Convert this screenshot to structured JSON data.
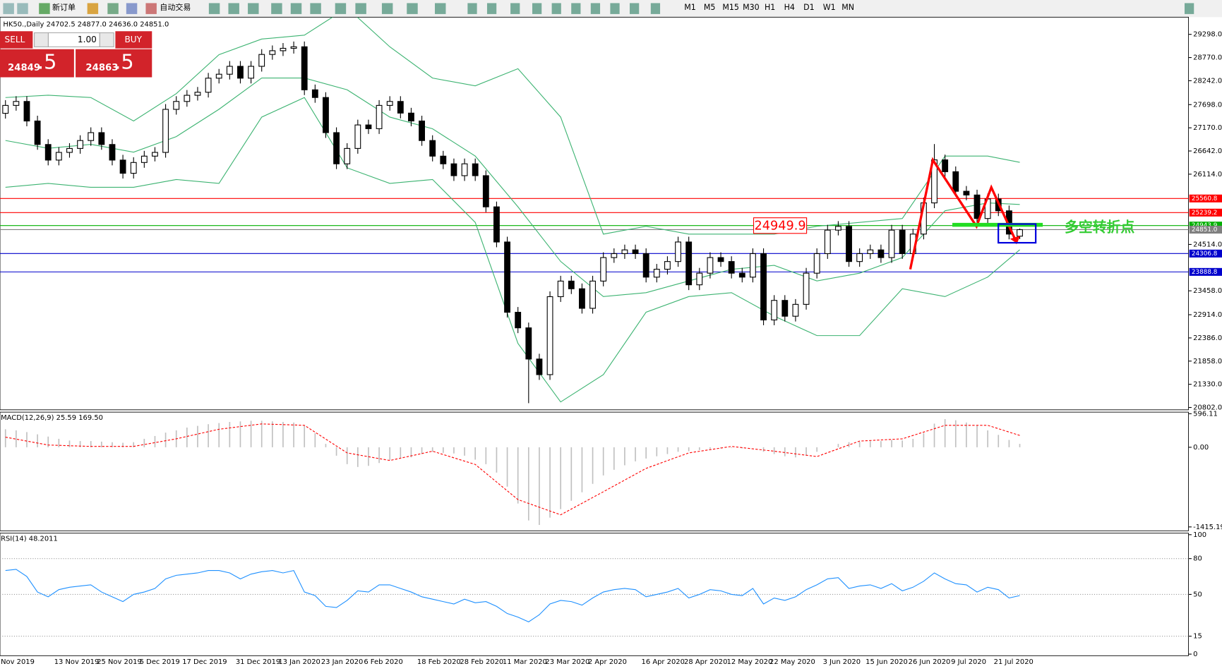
{
  "toolbar": {
    "buttons": [
      "新订单",
      "自动交易"
    ],
    "timeframes": [
      "M1",
      "M5",
      "M15",
      "M30",
      "H1",
      "H4",
      "D1",
      "W1",
      "MN"
    ]
  },
  "trade_panel": {
    "sell": "SELL",
    "buy": "BUY",
    "lots": "1.00",
    "sell_main": "24849",
    "sell_pips": ".5",
    "buy_main": "24863",
    "buy_pips": ".5"
  },
  "chart_data": [
    {
      "type": "candlestick",
      "title": "HK50.,Daily  24702.5 24877.0 24636.0 24851.0",
      "categories": [
        "Nov 2019",
        null,
        null,
        null,
        null,
        "13 Nov 2019",
        null,
        null,
        null,
        "25 Nov 2019",
        null,
        null,
        null,
        "5 Dec 2019",
        null,
        null,
        null,
        "17 Dec 2019",
        null,
        null,
        null,
        null,
        "31 Dec 2019",
        null,
        null,
        null,
        "13 Jan 2020",
        null,
        null,
        null,
        "23 Jan 2020",
        null,
        null,
        null,
        "6 Feb 2020",
        null,
        null,
        null,
        null,
        "18 Feb 2020",
        null,
        null,
        null,
        "28 Feb 2020",
        null,
        null,
        null,
        "11 Mar 2020",
        null,
        null,
        null,
        "23 Mar 2020",
        null,
        null,
        null,
        "2 Apr 2020",
        null,
        null,
        null,
        null,
        "16 Apr 2020",
        null,
        null,
        null,
        "28 Apr 2020",
        null,
        null,
        null,
        "12 May 2020",
        null,
        null,
        null,
        "22 May 2020",
        null,
        null,
        null,
        null,
        "3 Jun 2020",
        null,
        null,
        null,
        "15 Jun 2020",
        null,
        null,
        null,
        "26 Jun 2020",
        null,
        null,
        null,
        "9 Jul 2020",
        null,
        null,
        null,
        "21 Jul 2020",
        null,
        null
      ],
      "open": [
        27500,
        27680,
        27770,
        27325,
        26790,
        26435,
        26610,
        26700,
        26880,
        27060,
        26790,
        26435,
        26135,
        26380,
        26525,
        26610,
        27590,
        27770,
        27910,
        27980,
        28300,
        28390,
        28570,
        28300,
        28570,
        28840,
        28925,
        28980,
        29015,
        28035,
        27860,
        27060,
        26350,
        26700,
        27235,
        27150,
        27680,
        27770,
        27505,
        27325,
        26880,
        26525,
        26350,
        26080,
        26350,
        26080,
        25370,
        24570,
        22970,
        22615,
        21905,
        21550,
        23325,
        23680,
        23505,
        23060,
        23680,
        24215,
        24305,
        24390,
        24305,
        23770,
        23950,
        24125,
        24570,
        23595,
        23860,
        24215,
        24125,
        23860,
        23770,
        24305,
        22795,
        23240,
        22880,
        23150,
        23860,
        24305,
        24840,
        24925,
        24125,
        24305,
        24390,
        24215,
        24840,
        24305,
        24750,
        25460,
        26440,
        26170,
        25725,
        25640,
        25105,
        25550,
        25280,
        24702.5
      ],
      "high": [
        27800,
        27890,
        27890,
        27445,
        26910,
        26730,
        26820,
        27000,
        27180,
        27180,
        26910,
        26555,
        26500,
        26645,
        26730,
        27710,
        27890,
        28030,
        28100,
        28420,
        28510,
        28690,
        28690,
        28690,
        28960,
        29045,
        29100,
        29135,
        29135,
        28155,
        27980,
        27180,
        26820,
        27355,
        27355,
        27800,
        27890,
        27890,
        27625,
        27445,
        27000,
        26645,
        26470,
        26470,
        26470,
        26200,
        25490,
        24690,
        23090,
        22735,
        22025,
        23445,
        23800,
        23800,
        23625,
        23800,
        24335,
        24425,
        24510,
        24510,
        24425,
        24070,
        24245,
        24690,
        24690,
        23980,
        24335,
        24335,
        24245,
        23980,
        24425,
        24425,
        23360,
        23360,
        23270,
        23980,
        24425,
        24960,
        25045,
        25045,
        24425,
        24510,
        24510,
        24960,
        24960,
        24870,
        25580,
        26800,
        26560,
        26290,
        25845,
        25760,
        25670,
        25670,
        25400,
        24877
      ],
      "low": [
        27380,
        27560,
        27205,
        26670,
        26315,
        26315,
        26490,
        26580,
        26760,
        26670,
        26315,
        26015,
        26015,
        26260,
        26405,
        26490,
        27470,
        27650,
        27790,
        27860,
        28180,
        28270,
        28180,
        28180,
        28450,
        28720,
        28805,
        28860,
        27915,
        27740,
        26940,
        26230,
        26230,
        26580,
        27030,
        27030,
        27560,
        27385,
        27205,
        26760,
        26405,
        26230,
        25960,
        25960,
        25960,
        25250,
        24450,
        22850,
        22495,
        20900,
        21430,
        21430,
        23205,
        23385,
        22940,
        22940,
        23560,
        24095,
        24185,
        24185,
        23650,
        23650,
        23830,
        24005,
        23475,
        23475,
        23740,
        24005,
        23740,
        23650,
        23650,
        22675,
        22675,
        22760,
        22760,
        23030,
        23740,
        24185,
        24720,
        24005,
        24005,
        24185,
        24095,
        24095,
        24185,
        24185,
        24630,
        25340,
        26050,
        25605,
        25520,
        24985,
        24985,
        25160,
        24630,
        24636
      ],
      "close": [
        27680,
        27770,
        27325,
        26790,
        26435,
        26610,
        26700,
        26880,
        27060,
        26790,
        26435,
        26135,
        26380,
        26525,
        26610,
        27590,
        27770,
        27910,
        27980,
        28300,
        28390,
        28570,
        28300,
        28570,
        28840,
        28925,
        28980,
        29015,
        28035,
        27860,
        27060,
        26350,
        26700,
        27235,
        27150,
        27680,
        27770,
        27505,
        27325,
        26880,
        26525,
        26350,
        26080,
        26350,
        26080,
        25370,
        24570,
        22970,
        22615,
        21905,
        21550,
        23325,
        23680,
        23505,
        23060,
        23680,
        24215,
        24305,
        24390,
        24305,
        23770,
        23950,
        24125,
        24570,
        23595,
        23860,
        24215,
        24125,
        23860,
        23770,
        24305,
        22795,
        23240,
        22880,
        23150,
        23860,
        24305,
        24840,
        24925,
        24125,
        24305,
        24390,
        24215,
        24840,
        24305,
        24750,
        25460,
        26440,
        26170,
        25725,
        25640,
        25105,
        25550,
        25280,
        24750,
        24851
      ],
      "bands": {
        "color": "#3cb371",
        "x": [
          0,
          4,
          8,
          12,
          16,
          20,
          24,
          28,
          32,
          36,
          40,
          44,
          48,
          52,
          56,
          60,
          64,
          68,
          72,
          76,
          80,
          84,
          88,
          92,
          95
        ],
        "upper": [
          27859,
          27912,
          27859,
          27326,
          27948,
          28836,
          29191,
          29280,
          29902,
          29014,
          28303,
          28125,
          28516,
          27414,
          24749,
          24927,
          24749,
          24749,
          24749,
          24927,
          25016,
          25105,
          26526,
          26526,
          26384
        ],
        "middle": [
          26881,
          26704,
          26793,
          26615,
          26970,
          27592,
          28303,
          28303,
          28036,
          27414,
          27148,
          26526,
          25371,
          24127,
          23327,
          23416,
          23683,
          23949,
          24038,
          23683,
          23860,
          24216,
          25282,
          25460,
          25424
        ],
        "lower": [
          25815,
          25904,
          25815,
          25815,
          25993,
          25904,
          27414,
          27859,
          26259,
          25904,
          25993,
          25016,
          22261,
          20928,
          21550,
          22972,
          23327,
          23416,
          22883,
          22439,
          22439,
          23505,
          23327,
          23772,
          24394
        ]
      },
      "levels": [
        {
          "value": 25560.8,
          "color": "#ff0000"
        },
        {
          "value": 25239.2,
          "color": "#ff0000"
        },
        {
          "value": 24943.9,
          "color": "#00b000"
        },
        {
          "value": 24851,
          "label": "24851.0",
          "color": "#808080"
        },
        {
          "value": 24306.8,
          "color": "#0000cc"
        },
        {
          "value": 23888.8,
          "color": "#0000cc"
        }
      ],
      "annotations": [
        "24949.9",
        "多空转折点"
      ],
      "ylim": [
        20749,
        29689
      ],
      "yticks": [
        {
          "value": 29298,
          "label": "29298.0"
        },
        {
          "value": 28770,
          "label": "28770.0"
        },
        {
          "value": 28242,
          "label": "28242.0"
        },
        {
          "value": 27698,
          "label": "27698.0"
        },
        {
          "value": 27170,
          "label": "27170.0"
        },
        {
          "value": 26642,
          "label": "26642.0"
        },
        {
          "value": 26114,
          "label": "26114.0"
        },
        {
          "value": 24514,
          "label": "24514.0"
        },
        {
          "value": 23458,
          "label": "23458.0"
        },
        {
          "value": 22914,
          "label": "22914.0"
        },
        {
          "value": 22386,
          "label": "22386.0"
        },
        {
          "value": 21858,
          "label": "21858.0"
        },
        {
          "value": 21330,
          "label": "21330.0"
        },
        {
          "value": 20802,
          "label": "20802.0"
        }
      ]
    },
    {
      "type": "macd",
      "title": "MACD(12,26,9) 25.59 169.50",
      "color": "#c0c0c0",
      "values": [
        320,
        300,
        270,
        230,
        190,
        150,
        120,
        110,
        110,
        100,
        90,
        80,
        90,
        150,
        200,
        260,
        300,
        350,
        380,
        410,
        430,
        450,
        460,
        470,
        470,
        460,
        450,
        440,
        380,
        250,
        60,
        -150,
        -300,
        -350,
        -330,
        -280,
        -230,
        -200,
        -180,
        -120,
        -80,
        -100,
        -110,
        -150,
        -220,
        -300,
        -450,
        -700,
        -1000,
        -1300,
        -1380,
        -1250,
        -1100,
        -950,
        -800,
        -650,
        -500,
        -400,
        -320,
        -250,
        -200,
        -160,
        -120,
        -80,
        -70,
        -50,
        -30,
        -20,
        -10,
        -20,
        0,
        -80,
        -120,
        -160,
        -180,
        -150,
        -80,
        0,
        60,
        90,
        100,
        110,
        110,
        130,
        120,
        150,
        250,
        420,
        500,
        480,
        440,
        380,
        300,
        220,
        130,
        60
      ],
      "signal": {
        "color": "#ff0000",
        "x": [
          0,
          4,
          8,
          12,
          16,
          20,
          24,
          28,
          32,
          36,
          40,
          44,
          48,
          52,
          56,
          60,
          64,
          68,
          72,
          76,
          80,
          84,
          88,
          92,
          95
        ],
        "values": [
          180,
          40,
          15,
          15,
          150,
          320,
          415,
          390,
          -100,
          -235,
          -70,
          -305,
          -930,
          -1200,
          -790,
          -375,
          -100,
          15,
          -70,
          -165,
          110,
          150,
          390,
          390,
          210
        ]
      },
      "ylim": [
        -1484,
        624
      ],
      "yticks": [
        596.11,
        {
          "value": 0,
          "label": "0.00"
        },
        -1415.19
      ]
    },
    {
      "type": "line",
      "title": "RSI(14) 48.2011",
      "color": "#1e90ff",
      "values": [
        70,
        71,
        65,
        52,
        48,
        54,
        56,
        57,
        58,
        52,
        48,
        44,
        50,
        52,
        55,
        63,
        66,
        67,
        68,
        70,
        70,
        68,
        63,
        67,
        69,
        70,
        68,
        70,
        52,
        49,
        40,
        39,
        45,
        53,
        52,
        58,
        58,
        55,
        52,
        48,
        46,
        44,
        42,
        46,
        43,
        44,
        40,
        34,
        31,
        27,
        33,
        42,
        45,
        44,
        41,
        47,
        52,
        54,
        55,
        54,
        48,
        50,
        52,
        55,
        47,
        50,
        54,
        53,
        50,
        49,
        55,
        42,
        47,
        45,
        48,
        54,
        58,
        63,
        64,
        55,
        57,
        58,
        55,
        59,
        53,
        56,
        61,
        68,
        63,
        59,
        58,
        52,
        56,
        54,
        47,
        49
      ],
      "ylim": [
        0,
        100
      ],
      "yticks": [
        100,
        80,
        50,
        15,
        0
      ]
    }
  ]
}
